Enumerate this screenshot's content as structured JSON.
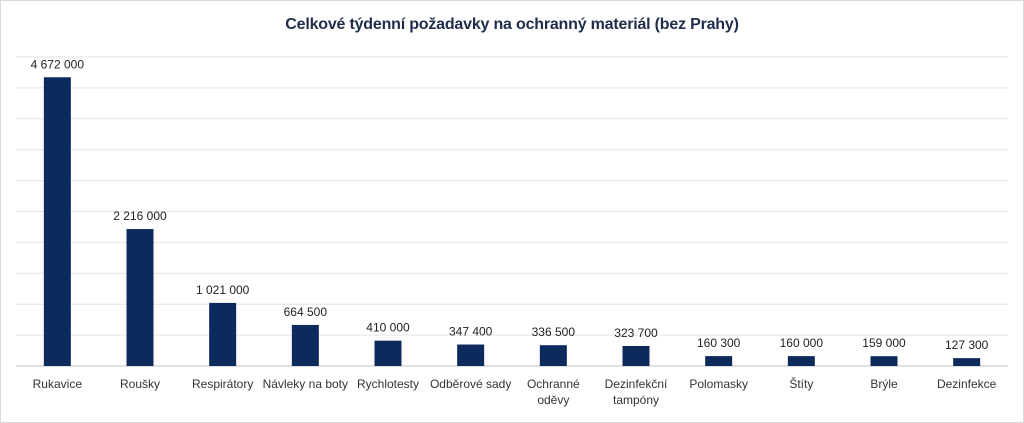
{
  "chart_data": {
    "type": "bar",
    "title": "Celkové týdenní požadavky na ochranný materiál (bez Prahy)",
    "categories": [
      [
        "Rukavice"
      ],
      [
        "Roušky"
      ],
      [
        "Respirátory"
      ],
      [
        "Návleky na boty"
      ],
      [
        "Rychlotesty"
      ],
      [
        "Odběrové sady"
      ],
      [
        "Ochranné",
        "oděvy"
      ],
      [
        "Dezinfekční",
        "tampóny"
      ],
      [
        "Polomasky"
      ],
      [
        "Štíty"
      ],
      [
        "Brýle"
      ],
      [
        "Dezinfekce"
      ]
    ],
    "values": [
      4672000,
      2216000,
      1021000,
      664500,
      410000,
      347400,
      336500,
      323700,
      160300,
      160000,
      159000,
      127300
    ],
    "data_labels": [
      "4 672 000",
      "2 216 000",
      "1 021 000",
      "664 500",
      "410 000",
      "347 400",
      "336 500",
      "323 700",
      "160 300",
      "160 000",
      "159 000",
      "127 300"
    ],
    "ylim": [
      0,
      5000000
    ],
    "grid": true,
    "bar_color": "#0c2a5b",
    "grid_color": "#e4e4e4",
    "axis_color": "#bfbfbf"
  }
}
